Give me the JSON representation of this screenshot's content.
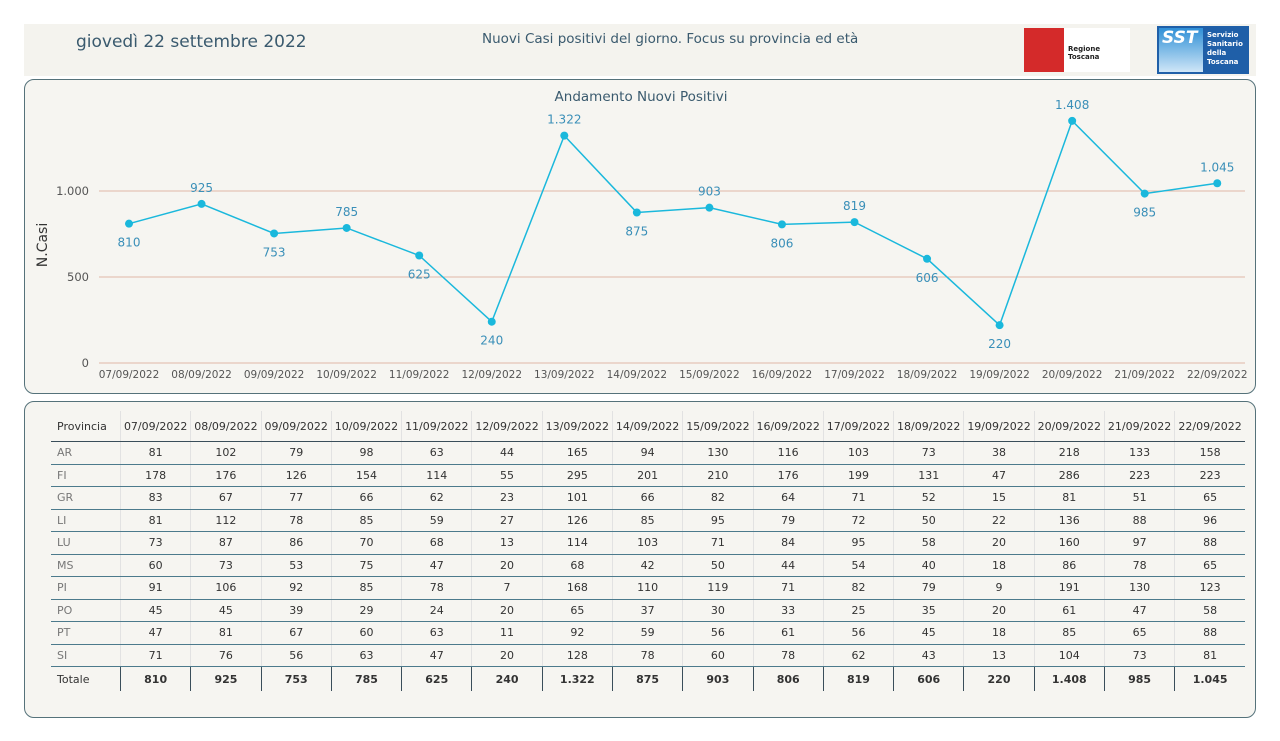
{
  "header": {
    "date": "giovedì 22 settembre 2022",
    "title": "Nuovi Casi positivi del giorno. Focus su provincia ed età",
    "logo_region": "Regione Toscana",
    "logo_sst_short": "SST",
    "logo_sst_full": "Servizio\nSanitario\ndella\nToscana"
  },
  "chart_data": {
    "type": "line",
    "title": "Andamento Nuovi Positivi",
    "ylabel": "N.Casi",
    "xlabel": "",
    "ylim": [
      0,
      1500
    ],
    "yticks": [
      0,
      500,
      1000
    ],
    "ytick_labels": [
      "0",
      "500",
      "1.000"
    ],
    "grid": "horizontal",
    "line_color": "#1ab8dc",
    "grid_color": "#e0b8a8",
    "categories": [
      "07/09/2022",
      "08/09/2022",
      "09/09/2022",
      "10/09/2022",
      "11/09/2022",
      "12/09/2022",
      "13/09/2022",
      "14/09/2022",
      "15/09/2022",
      "16/09/2022",
      "17/09/2022",
      "18/09/2022",
      "19/09/2022",
      "20/09/2022",
      "21/09/2022",
      "22/09/2022"
    ],
    "values": [
      810,
      925,
      753,
      785,
      625,
      240,
      1322,
      875,
      903,
      806,
      819,
      606,
      220,
      1408,
      985,
      1045
    ],
    "value_labels": [
      "810",
      "925",
      "753",
      "785",
      "625",
      "240",
      "1.322",
      "875",
      "903",
      "806",
      "819",
      "606",
      "220",
      "1.408",
      "985",
      "1.045"
    ]
  },
  "table": {
    "header_first": "Provincia",
    "dates": [
      "07/09/2022",
      "08/09/2022",
      "09/09/2022",
      "10/09/2022",
      "11/09/2022",
      "12/09/2022",
      "13/09/2022",
      "14/09/2022",
      "15/09/2022",
      "16/09/2022",
      "17/09/2022",
      "18/09/2022",
      "19/09/2022",
      "20/09/2022",
      "21/09/2022",
      "22/09/2022"
    ],
    "rows": [
      {
        "province": "AR",
        "values": [
          "81",
          "102",
          "79",
          "98",
          "63",
          "44",
          "165",
          "94",
          "130",
          "116",
          "103",
          "73",
          "38",
          "218",
          "133",
          "158"
        ]
      },
      {
        "province": "FI",
        "values": [
          "178",
          "176",
          "126",
          "154",
          "114",
          "55",
          "295",
          "201",
          "210",
          "176",
          "199",
          "131",
          "47",
          "286",
          "223",
          "223"
        ]
      },
      {
        "province": "GR",
        "values": [
          "83",
          "67",
          "77",
          "66",
          "62",
          "23",
          "101",
          "66",
          "82",
          "64",
          "71",
          "52",
          "15",
          "81",
          "51",
          "65"
        ]
      },
      {
        "province": "LI",
        "values": [
          "81",
          "112",
          "78",
          "85",
          "59",
          "27",
          "126",
          "85",
          "95",
          "79",
          "72",
          "50",
          "22",
          "136",
          "88",
          "96"
        ]
      },
      {
        "province": "LU",
        "values": [
          "73",
          "87",
          "86",
          "70",
          "68",
          "13",
          "114",
          "103",
          "71",
          "84",
          "95",
          "58",
          "20",
          "160",
          "97",
          "88"
        ]
      },
      {
        "province": "MS",
        "values": [
          "60",
          "73",
          "53",
          "75",
          "47",
          "20",
          "68",
          "42",
          "50",
          "44",
          "54",
          "40",
          "18",
          "86",
          "78",
          "65"
        ]
      },
      {
        "province": "PI",
        "values": [
          "91",
          "106",
          "92",
          "85",
          "78",
          "7",
          "168",
          "110",
          "119",
          "71",
          "82",
          "79",
          "9",
          "191",
          "130",
          "123"
        ]
      },
      {
        "province": "PO",
        "values": [
          "45",
          "45",
          "39",
          "29",
          "24",
          "20",
          "65",
          "37",
          "30",
          "33",
          "25",
          "35",
          "20",
          "61",
          "47",
          "58"
        ]
      },
      {
        "province": "PT",
        "values": [
          "47",
          "81",
          "67",
          "60",
          "63",
          "11",
          "92",
          "59",
          "56",
          "61",
          "56",
          "45",
          "18",
          "85",
          "65",
          "88"
        ]
      },
      {
        "province": "SI",
        "values": [
          "71",
          "76",
          "56",
          "63",
          "47",
          "20",
          "128",
          "78",
          "60",
          "78",
          "62",
          "43",
          "13",
          "104",
          "73",
          "81"
        ]
      }
    ],
    "total_label": "Totale",
    "totals": [
      "810",
      "925",
      "753",
      "785",
      "625",
      "240",
      "1.322",
      "875",
      "903",
      "806",
      "819",
      "606",
      "220",
      "1.408",
      "985",
      "1.045"
    ]
  }
}
